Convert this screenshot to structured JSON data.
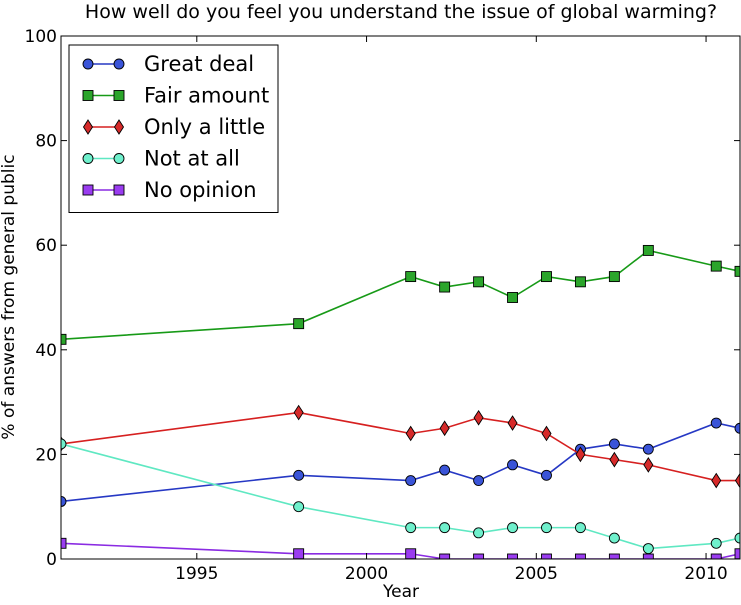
{
  "chart_data": {
    "type": "line",
    "title": "How well do you feel you understand the issue of global warming?",
    "xlabel": "Year",
    "ylabel": "% of answers from general public",
    "xlim": [
      1991,
      2011
    ],
    "ylim": [
      0,
      100
    ],
    "xticks": [
      1995,
      2000,
      2005,
      2010
    ],
    "yticks": [
      0,
      20,
      40,
      60,
      80,
      100
    ],
    "legend_position": "top-left",
    "series": [
      {
        "name": "Great deal",
        "color": "#2638c4",
        "fill": "#3a54d8",
        "marker": "circle",
        "x": [
          1991,
          1998,
          2001.3,
          2002.3,
          2003.3,
          2004.3,
          2005.3,
          2006.3,
          2007.3,
          2008.3,
          2010.3,
          2011
        ],
        "y": [
          11,
          16,
          15,
          17,
          15,
          18,
          16,
          21,
          22,
          21,
          26,
          25
        ]
      },
      {
        "name": "Fair amount",
        "color": "#179a17",
        "fill": "#2ba52b",
        "marker": "square",
        "x": [
          1991,
          1998,
          2001.3,
          2002.3,
          2003.3,
          2004.3,
          2005.3,
          2006.3,
          2007.3,
          2008.3,
          2010.3,
          2011
        ],
        "y": [
          42,
          45,
          54,
          52,
          53,
          50,
          54,
          53,
          54,
          59,
          56,
          55
        ]
      },
      {
        "name": "Only a little",
        "color": "#d62020",
        "fill": "#d62a2a",
        "marker": "diamond",
        "x": [
          1991,
          1998,
          2001.3,
          2002.3,
          2003.3,
          2004.3,
          2005.3,
          2006.3,
          2007.3,
          2008.3,
          2010.3,
          2011
        ],
        "y": [
          22,
          28,
          24,
          25,
          27,
          26,
          24,
          20,
          19,
          18,
          15,
          15
        ]
      },
      {
        "name": "Not at all",
        "color": "#5fe8c2",
        "fill": "#6ff0cc",
        "marker": "circle",
        "x": [
          1991,
          1998,
          2001.3,
          2002.3,
          2003.3,
          2004.3,
          2005.3,
          2006.3,
          2007.3,
          2008.3,
          2010.3,
          2011
        ],
        "y": [
          22,
          10,
          6,
          6,
          5,
          6,
          6,
          6,
          4,
          2,
          3,
          4
        ]
      },
      {
        "name": "No opinion",
        "color": "#8a2be2",
        "fill": "#9a3cf0",
        "marker": "square",
        "x": [
          1991,
          1998,
          2001.3,
          2002.3,
          2003.3,
          2004.3,
          2005.3,
          2006.3,
          2007.3,
          2008.3,
          2010.3,
          2011
        ],
        "y": [
          3,
          1,
          1,
          0,
          0,
          0,
          0,
          0,
          0,
          0,
          0,
          1
        ]
      }
    ]
  }
}
